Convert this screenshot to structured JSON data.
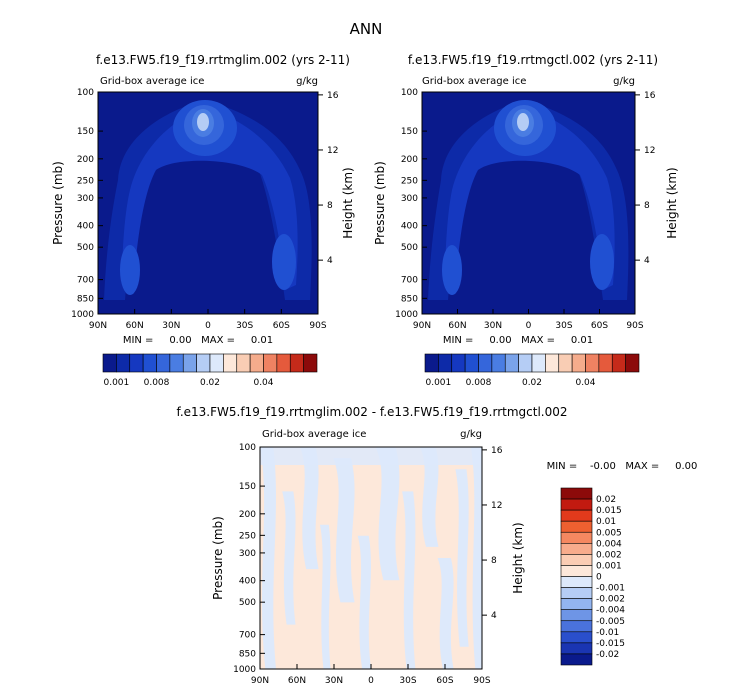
{
  "title": "ANN",
  "chart_data": [
    {
      "type": "heatmap",
      "id": "top-left",
      "title": "f.e13.FW5.f19_f19.rrtmglim.002 (yrs 2-11)",
      "subtitle_left": "Grid-box average ice",
      "subtitle_right": "g/kg",
      "ylabel": "Pressure (mb)",
      "ylabel_right": "Height (km)",
      "xticks": [
        "90N",
        "60N",
        "30N",
        "0",
        "30S",
        "60S",
        "90S"
      ],
      "yticks": [
        100,
        150,
        200,
        250,
        300,
        400,
        500,
        700,
        850,
        1000
      ],
      "height_ticks": [
        16,
        12,
        8,
        4
      ],
      "stats": "MIN =     0.00   MAX =     0.01"
    },
    {
      "type": "heatmap",
      "id": "top-right",
      "title": "f.e13.FW5.f19_f19.rrtmgctl.002 (yrs 2-11)",
      "subtitle_left": "Grid-box average ice",
      "subtitle_right": "g/kg",
      "ylabel": "Pressure (mb)",
      "ylabel_right": "Height (km)",
      "xticks": [
        "90N",
        "60N",
        "30N",
        "0",
        "30S",
        "60S",
        "90S"
      ],
      "yticks": [
        100,
        150,
        200,
        250,
        300,
        400,
        500,
        700,
        850,
        1000
      ],
      "height_ticks": [
        16,
        12,
        8,
        4
      ],
      "stats": "MIN =     0.00   MAX =     0.01"
    },
    {
      "type": "heatmap",
      "id": "bottom-diff",
      "title": "f.e13.FW5.f19_f19.rrtmglim.002 - f.e13.FW5.f19_f19.rrtmgctl.002",
      "subtitle_left": "Grid-box average ice",
      "subtitle_right": "g/kg",
      "ylabel": "Pressure (mb)",
      "ylabel_right": "Height (km)",
      "xticks": [
        "90N",
        "60N",
        "30N",
        "0",
        "30S",
        "60S",
        "90S"
      ],
      "yticks": [
        100,
        150,
        200,
        250,
        300,
        400,
        500,
        700,
        850,
        1000
      ],
      "height_ticks": [
        16,
        12,
        8,
        4
      ],
      "stats": "MIN =    -0.00   MAX =     0.00"
    }
  ],
  "colorbar_top": {
    "colors": [
      "#0a1a8c",
      "#0d2aa8",
      "#1538c0",
      "#2050d2",
      "#3566db",
      "#4a7de2",
      "#7aa3ea",
      "#b5cdf5",
      "#dde9fb",
      "#fde8da",
      "#f9cdb4",
      "#f5ac8c",
      "#ef8262",
      "#e55a3c",
      "#c52a1a",
      "#8c0a0a"
    ],
    "labels": [
      "0.001",
      "0.008",
      "0.02",
      "0.04"
    ]
  },
  "colorbar_diff": {
    "colors": [
      "#8c0a0a",
      "#c21a10",
      "#e23a1c",
      "#ee6030",
      "#f58860",
      "#f8ac8c",
      "#fbcdb4",
      "#fde8da",
      "#dde9fb",
      "#b5cdf5",
      "#93b5f0",
      "#6e95e6",
      "#4a72dc",
      "#2a4fcc",
      "#1a35b2",
      "#0a1a8c"
    ],
    "labels": [
      "0.02",
      "0.015",
      "0.01",
      "0.005",
      "0.004",
      "0.002",
      "0.001",
      "0",
      "-0.001",
      "-0.002",
      "-0.004",
      "-0.005",
      "-0.01",
      "-0.015",
      "-0.02"
    ]
  }
}
